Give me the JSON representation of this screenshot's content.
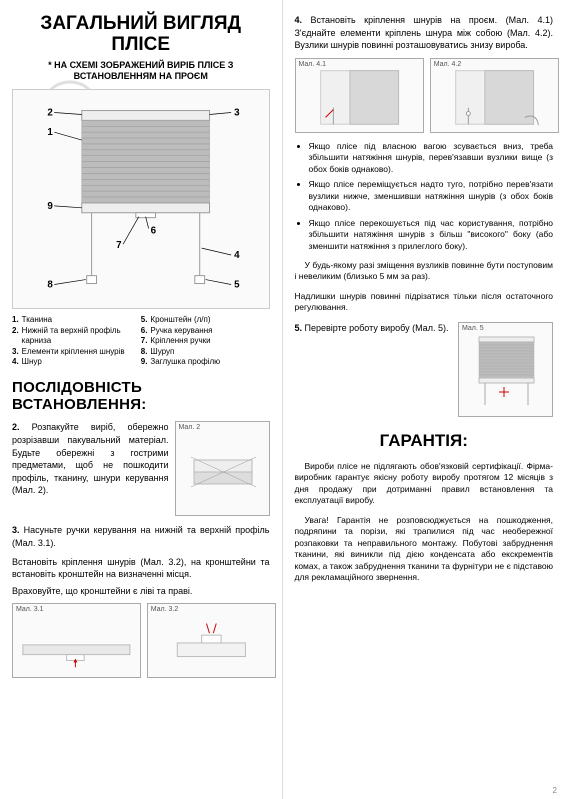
{
  "left": {
    "title": "Загальний вигляд плісе",
    "subtitle": "* На схемі зображений виріб плісе з встановленням на проєм",
    "legend_left": [
      {
        "n": "1.",
        "t": "Тканина"
      },
      {
        "n": "2.",
        "t": "Нижній та верхній профіль карниза"
      },
      {
        "n": "3.",
        "t": "Елементи кріплення шнурів"
      },
      {
        "n": "4.",
        "t": "Шнур"
      }
    ],
    "legend_right": [
      {
        "n": "5.",
        "t": "Кронштейн (л/п)"
      },
      {
        "n": "6.",
        "t": "Ручка керування"
      },
      {
        "n": "7.",
        "t": "Кріплення ручки"
      },
      {
        "n": "8.",
        "t": "Шуруп"
      },
      {
        "n": "9.",
        "t": "Заглушка профілю"
      }
    ],
    "seq_title": "Послідовність встановлення:",
    "step2_label": "2.",
    "step2_text": " Розпакуйте виріб, обережно розрізавши пакувальний матеріал. Будьте обережні з гострими предметами, щоб не пошкодити профіль, тканину, шнури керування (Мал. 2).",
    "step3_label": "3.",
    "step3_text1": " Насуньте ручки керування на нижній та верхній профіль (Мал. 3.1).",
    "step3_text2": "Встановіть кріплення шнурів (Мал. 3.2), на кронштейни та встановіть кронштейн на визначенні місця.",
    "step3_text3": "Враховуйте, що кронштейни є ліві та праві.",
    "fig2": "Мал. 2",
    "fig31": "Мал. 3.1",
    "fig32": "Мал. 3.2"
  },
  "right": {
    "step4_label": "4.",
    "step4_text": " Встановіть кріплення шнурів на проєм. (Мал. 4.1) З'єднайте елементи кріплень шнура між собою (Мал. 4.2). Вузлики шнурів повинні розташовуватись знизу вироба.",
    "fig41": "Мал. 4.1",
    "fig42": "Мал. 4.2",
    "bullets": [
      "Якщо плісе під власною вагою зсувається вниз, треба збільшити натяжіння шнурів, перев'язавши вузлики вище (з обох боків однаково).",
      "Якщо плісе переміщується надто туго, потрібно перев'язати вузлики нижче, зменшивши натяжіння шнурів (з обох боків однаково).",
      "Якщо плісе перекошується під час користування, потрібно збільшити натяжіння шнурів з більш \"високого\" боку (або зменшити натяжіння з прилеглого боку)."
    ],
    "para1": "У будь-якому разі зміщення вузликів повинне бути поступовим і невеликим (близько 5 мм за раз).",
    "para2": "Надлишки шнурів повинні підрізатися тільки після остаточного регулювання.",
    "step5_label": "5.",
    "step5_text": " Перевірте роботу виробу (Мал. 5).",
    "fig5": "Мал. 5",
    "warranty_title": "Гарантія:",
    "warranty_p1": "Вироби плісе не підлягають обов'язковій сертифікації. Фірма-виробник гарантує якісну роботу виробу протягом 12 місяців з дня продажу при дотриманні правил встановлення та експлуатації виробу.",
    "warranty_p2": "Увага! Гарантія не розповсюджується на пошкодження, подряпини та порізи, які трапилися під час необережної розпаковки та неправильного монтажу. Побутові забруднення тканини, які виникли під дією конденсата або екскрементів комах, а також забруднення тканини та фурнітури не є підставою для рекламаційного звернення."
  },
  "page": "2"
}
